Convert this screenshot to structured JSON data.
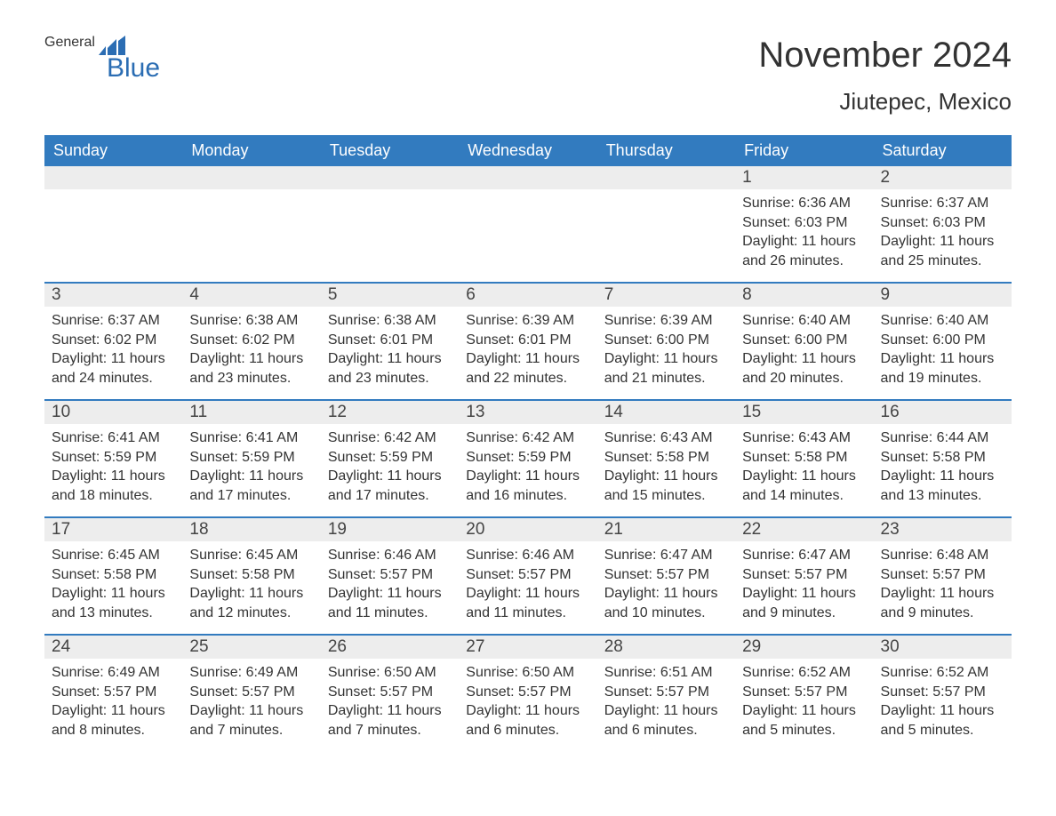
{
  "logo": {
    "general": "General",
    "blue": "Blue"
  },
  "title": "November 2024",
  "location": "Jiutepec, Mexico",
  "colors": {
    "brand": "#2b6db3",
    "header_bg": "#327bbf",
    "header_text": "#ffffff",
    "daynum_bg": "#ededed",
    "text": "#333333",
    "rule": "#327bbf"
  },
  "dow": [
    "Sunday",
    "Monday",
    "Tuesday",
    "Wednesday",
    "Thursday",
    "Friday",
    "Saturday"
  ],
  "weeks": [
    [
      {
        "empty": true
      },
      {
        "empty": true
      },
      {
        "empty": true
      },
      {
        "empty": true
      },
      {
        "empty": true
      },
      {
        "n": "1",
        "sunrise": "6:36 AM",
        "sunset": "6:03 PM",
        "dl": "11 hours and 26 minutes."
      },
      {
        "n": "2",
        "sunrise": "6:37 AM",
        "sunset": "6:03 PM",
        "dl": "11 hours and 25 minutes."
      }
    ],
    [
      {
        "n": "3",
        "sunrise": "6:37 AM",
        "sunset": "6:02 PM",
        "dl": "11 hours and 24 minutes."
      },
      {
        "n": "4",
        "sunrise": "6:38 AM",
        "sunset": "6:02 PM",
        "dl": "11 hours and 23 minutes."
      },
      {
        "n": "5",
        "sunrise": "6:38 AM",
        "sunset": "6:01 PM",
        "dl": "11 hours and 23 minutes."
      },
      {
        "n": "6",
        "sunrise": "6:39 AM",
        "sunset": "6:01 PM",
        "dl": "11 hours and 22 minutes."
      },
      {
        "n": "7",
        "sunrise": "6:39 AM",
        "sunset": "6:00 PM",
        "dl": "11 hours and 21 minutes."
      },
      {
        "n": "8",
        "sunrise": "6:40 AM",
        "sunset": "6:00 PM",
        "dl": "11 hours and 20 minutes."
      },
      {
        "n": "9",
        "sunrise": "6:40 AM",
        "sunset": "6:00 PM",
        "dl": "11 hours and 19 minutes."
      }
    ],
    [
      {
        "n": "10",
        "sunrise": "6:41 AM",
        "sunset": "5:59 PM",
        "dl": "11 hours and 18 minutes."
      },
      {
        "n": "11",
        "sunrise": "6:41 AM",
        "sunset": "5:59 PM",
        "dl": "11 hours and 17 minutes."
      },
      {
        "n": "12",
        "sunrise": "6:42 AM",
        "sunset": "5:59 PM",
        "dl": "11 hours and 17 minutes."
      },
      {
        "n": "13",
        "sunrise": "6:42 AM",
        "sunset": "5:59 PM",
        "dl": "11 hours and 16 minutes."
      },
      {
        "n": "14",
        "sunrise": "6:43 AM",
        "sunset": "5:58 PM",
        "dl": "11 hours and 15 minutes."
      },
      {
        "n": "15",
        "sunrise": "6:43 AM",
        "sunset": "5:58 PM",
        "dl": "11 hours and 14 minutes."
      },
      {
        "n": "16",
        "sunrise": "6:44 AM",
        "sunset": "5:58 PM",
        "dl": "11 hours and 13 minutes."
      }
    ],
    [
      {
        "n": "17",
        "sunrise": "6:45 AM",
        "sunset": "5:58 PM",
        "dl": "11 hours and 13 minutes."
      },
      {
        "n": "18",
        "sunrise": "6:45 AM",
        "sunset": "5:58 PM",
        "dl": "11 hours and 12 minutes."
      },
      {
        "n": "19",
        "sunrise": "6:46 AM",
        "sunset": "5:57 PM",
        "dl": "11 hours and 11 minutes."
      },
      {
        "n": "20",
        "sunrise": "6:46 AM",
        "sunset": "5:57 PM",
        "dl": "11 hours and 11 minutes."
      },
      {
        "n": "21",
        "sunrise": "6:47 AM",
        "sunset": "5:57 PM",
        "dl": "11 hours and 10 minutes."
      },
      {
        "n": "22",
        "sunrise": "6:47 AM",
        "sunset": "5:57 PM",
        "dl": "11 hours and 9 minutes."
      },
      {
        "n": "23",
        "sunrise": "6:48 AM",
        "sunset": "5:57 PM",
        "dl": "11 hours and 9 minutes."
      }
    ],
    [
      {
        "n": "24",
        "sunrise": "6:49 AM",
        "sunset": "5:57 PM",
        "dl": "11 hours and 8 minutes."
      },
      {
        "n": "25",
        "sunrise": "6:49 AM",
        "sunset": "5:57 PM",
        "dl": "11 hours and 7 minutes."
      },
      {
        "n": "26",
        "sunrise": "6:50 AM",
        "sunset": "5:57 PM",
        "dl": "11 hours and 7 minutes."
      },
      {
        "n": "27",
        "sunrise": "6:50 AM",
        "sunset": "5:57 PM",
        "dl": "11 hours and 6 minutes."
      },
      {
        "n": "28",
        "sunrise": "6:51 AM",
        "sunset": "5:57 PM",
        "dl": "11 hours and 6 minutes."
      },
      {
        "n": "29",
        "sunrise": "6:52 AM",
        "sunset": "5:57 PM",
        "dl": "11 hours and 5 minutes."
      },
      {
        "n": "30",
        "sunrise": "6:52 AM",
        "sunset": "5:57 PM",
        "dl": "11 hours and 5 minutes."
      }
    ]
  ],
  "labels": {
    "sunrise": "Sunrise: ",
    "sunset": "Sunset: ",
    "daylight": "Daylight: "
  }
}
